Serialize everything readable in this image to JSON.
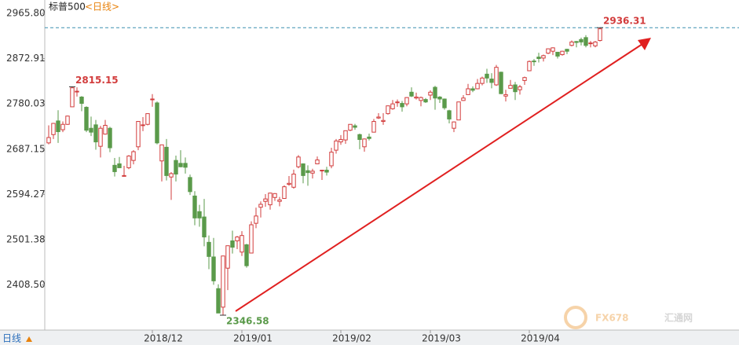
{
  "chart_data": {
    "type": "candlestick",
    "title": "标普500",
    "period_tag": "<日线>",
    "period_button": "日线",
    "watermark": {
      "brand": "FX678",
      "site": "汇通网"
    },
    "up_color": "#d23c3c",
    "down_color": "#5a9a4a",
    "grid": false,
    "ylim": [
      2316,
      2977
    ],
    "yticks": [
      {
        "value": 2965.8,
        "label": "2965.80"
      },
      2872.91,
      2780.03,
      2687.15,
      2594.27,
      2501.38,
      {
        "value": 2408.5,
        "label": "2408.50"
      }
    ],
    "annotations": [
      {
        "value": 2815.15,
        "color": "#d23c3c"
      },
      {
        "value": 2346.58,
        "color": "#5a9a4a"
      },
      {
        "value": 2936.31,
        "color": "#d23c3c"
      }
    ],
    "categories": [
      null,
      null,
      null,
      null,
      null,
      null,
      null,
      null,
      null,
      null,
      null,
      null,
      null,
      null,
      null,
      null,
      null,
      null,
      null,
      null,
      null,
      null,
      "2018/12",
      null,
      null,
      null,
      null,
      null,
      null,
      null,
      null,
      null,
      null,
      null,
      null,
      null,
      null,
      null,
      null,
      null,
      null,
      "2019/01",
      null,
      null,
      null,
      null,
      null,
      null,
      null,
      null,
      null,
      null,
      null,
      null,
      null,
      null,
      null,
      null,
      null,
      null,
      null,
      null,
      "2019/02",
      null,
      null,
      null,
      null,
      null,
      null,
      null,
      null,
      null,
      null,
      null,
      null,
      null,
      null,
      null,
      null,
      null,
      null,
      "2019/03",
      null,
      null,
      null,
      null,
      null,
      null,
      null,
      null,
      null,
      null,
      null,
      null,
      null,
      null,
      null,
      null,
      null,
      null,
      null,
      null,
      "2019/04",
      null,
      null,
      null,
      null,
      null,
      null,
      null,
      null,
      null,
      null,
      null,
      null,
      null,
      null,
      null
    ],
    "ohlc": [
      [
        2700,
        2736,
        2697,
        2711
      ],
      [
        2717,
        2741,
        2708,
        2740
      ],
      [
        2745,
        2767,
        2700,
        2723
      ],
      [
        2727,
        2744,
        2722,
        2738
      ],
      [
        2738,
        2756,
        2737,
        2755
      ],
      [
        2774,
        2815.15,
        2774,
        2813
      ],
      [
        2806,
        2814,
        2795,
        2806
      ],
      [
        2794,
        2796,
        2765,
        2781
      ],
      [
        2773,
        2775,
        2722,
        2726
      ],
      [
        2730,
        2754,
        2714,
        2722
      ],
      [
        2737,
        2747,
        2686,
        2702
      ],
      [
        2693,
        2735,
        2670,
        2730
      ],
      [
        2718,
        2747,
        2717,
        2736
      ],
      [
        2730,
        2733,
        2681,
        2690
      ],
      [
        2654,
        2669,
        2631,
        2641
      ],
      [
        2657,
        2671,
        2649,
        2649
      ],
      [
        2633,
        2653,
        2631,
        2633
      ],
      [
        2649,
        2675,
        2646,
        2673
      ],
      [
        2664,
        2685,
        2656,
        2682
      ],
      [
        2692,
        2744,
        2685,
        2744
      ],
      [
        2736,
        2753,
        2724,
        2737
      ],
      [
        2738,
        2760,
        2736,
        2760
      ],
      [
        2790,
        2800,
        2774,
        2790
      ],
      [
        2782,
        2785,
        2697,
        2700
      ],
      [
        2663,
        2696,
        2621,
        2696
      ],
      [
        2691,
        2708,
        2623,
        2633
      ],
      [
        2630,
        2640,
        2583,
        2637
      ],
      [
        2664,
        2674,
        2621,
        2636
      ],
      [
        2658,
        2685,
        2650,
        2651
      ],
      [
        2658,
        2670,
        2637,
        2650
      ],
      [
        2629,
        2635,
        2593,
        2600
      ],
      [
        2591,
        2601,
        2531,
        2546
      ],
      [
        2559,
        2573,
        2528,
        2546
      ],
      [
        2548,
        2585,
        2488,
        2507
      ],
      [
        2496,
        2510,
        2441,
        2467
      ],
      [
        2466,
        2505,
        2409,
        2417
      ],
      [
        2401,
        2410,
        2351,
        2351
      ],
      [
        2363,
        2468,
        2346.58,
        2468
      ],
      [
        2443,
        2489,
        2398,
        2489
      ],
      [
        2499,
        2520,
        2473,
        2486
      ],
      [
        2499,
        2509,
        2482,
        2507
      ],
      [
        2476,
        2519,
        2468,
        2510
      ],
      [
        2491,
        2493,
        2444,
        2448
      ],
      [
        2474,
        2539,
        2474,
        2532
      ],
      [
        2535,
        2567,
        2525,
        2550
      ],
      [
        2568,
        2580,
        2547,
        2574
      ],
      [
        2580,
        2595,
        2569,
        2585
      ],
      [
        2573,
        2598,
        2563,
        2597
      ],
      [
        2588,
        2597,
        2581,
        2596
      ],
      [
        2580,
        2589,
        2570,
        2583
      ],
      [
        2586,
        2613,
        2586,
        2610
      ],
      [
        2615,
        2632,
        2612,
        2617
      ],
      [
        2609,
        2645,
        2606,
        2636
      ],
      [
        2651,
        2675,
        2648,
        2671
      ],
      [
        2657,
        2658,
        2617,
        2633
      ],
      [
        2643,
        2654,
        2612,
        2639
      ],
      [
        2638,
        2647,
        2627,
        2642
      ],
      [
        2657,
        2672,
        2657,
        2665
      ],
      [
        2644,
        2644,
        2624,
        2644
      ],
      [
        2644,
        2651,
        2633,
        2640
      ],
      [
        2653,
        2690,
        2648,
        2681
      ],
      [
        2685,
        2708,
        2678,
        2704
      ],
      [
        2702,
        2716,
        2696,
        2707
      ],
      [
        2706,
        2724,
        2698,
        2725
      ],
      [
        2726,
        2738,
        2724,
        2738
      ],
      [
        2735,
        2739,
        2727,
        2732
      ],
      [
        2717,
        2719,
        2687,
        2707
      ],
      [
        2692,
        2709,
        2682,
        2708
      ],
      [
        2712,
        2719,
        2705,
        2709
      ],
      [
        2722,
        2749,
        2722,
        2744
      ],
      [
        2751,
        2761,
        2749,
        2753
      ],
      [
        2744,
        2761,
        2737,
        2746
      ],
      [
        2760,
        2776,
        2758,
        2776
      ],
      [
        2770,
        2788,
        2768,
        2780
      ],
      [
        2784,
        2789,
        2774,
        2784
      ],
      [
        2781,
        2786,
        2764,
        2774
      ],
      [
        2780,
        2794,
        2775,
        2793
      ],
      [
        2804,
        2814,
        2794,
        2796
      ],
      [
        2792,
        2803,
        2789,
        2794
      ],
      [
        2787,
        2795,
        2775,
        2793
      ],
      [
        2789,
        2792,
        2782,
        2784
      ],
      [
        2798,
        2808,
        2788,
        2804
      ],
      [
        2814,
        2817,
        2768,
        2792
      ],
      [
        2794,
        2796,
        2782,
        2790
      ],
      [
        2790,
        2791,
        2768,
        2772
      ],
      [
        2766,
        2768,
        2740,
        2749
      ],
      [
        2730,
        2744,
        2722,
        2743
      ],
      [
        2747,
        2784,
        2747,
        2784
      ],
      [
        2787,
        2798,
        2786,
        2792
      ],
      [
        2799,
        2821,
        2799,
        2811
      ],
      [
        2811,
        2816,
        2804,
        2808
      ],
      [
        2811,
        2831,
        2810,
        2822
      ],
      [
        2822,
        2836,
        2818,
        2833
      ],
      [
        2841,
        2852,
        2823,
        2833
      ],
      [
        2831,
        2843,
        2812,
        2824
      ],
      [
        2819,
        2860,
        2817,
        2855
      ],
      [
        2845,
        2846,
        2800,
        2801
      ],
      [
        2796,
        2809,
        2785,
        2799
      ],
      [
        2812,
        2829,
        2812,
        2818
      ],
      [
        2819,
        2825,
        2788,
        2805
      ],
      [
        2809,
        2819,
        2799,
        2815
      ],
      [
        2828,
        2836,
        2819,
        2834
      ],
      [
        2848,
        2869,
        2848,
        2867
      ],
      [
        2868,
        2872,
        2858,
        2867
      ],
      [
        2876,
        2885,
        2865,
        2873
      ],
      [
        2874,
        2881,
        2867,
        2879
      ],
      [
        2884,
        2893,
        2882,
        2893
      ],
      [
        2888,
        2896,
        2880,
        2895
      ],
      [
        2886,
        2886,
        2873,
        2878
      ],
      [
        2881,
        2889,
        2879,
        2888
      ],
      [
        2892,
        2893,
        2882,
        2888
      ],
      [
        2900,
        2910,
        2898,
        2907
      ],
      [
        2908,
        2909,
        2896,
        2906
      ],
      [
        2912,
        2916,
        2900,
        2907
      ],
      [
        2916,
        2921,
        2896,
        2900
      ],
      [
        2904,
        2909,
        2896,
        2905
      ],
      [
        2899,
        2909,
        2896,
        2907
      ],
      [
        2910,
        2936.31,
        2908,
        2934
      ]
    ]
  }
}
